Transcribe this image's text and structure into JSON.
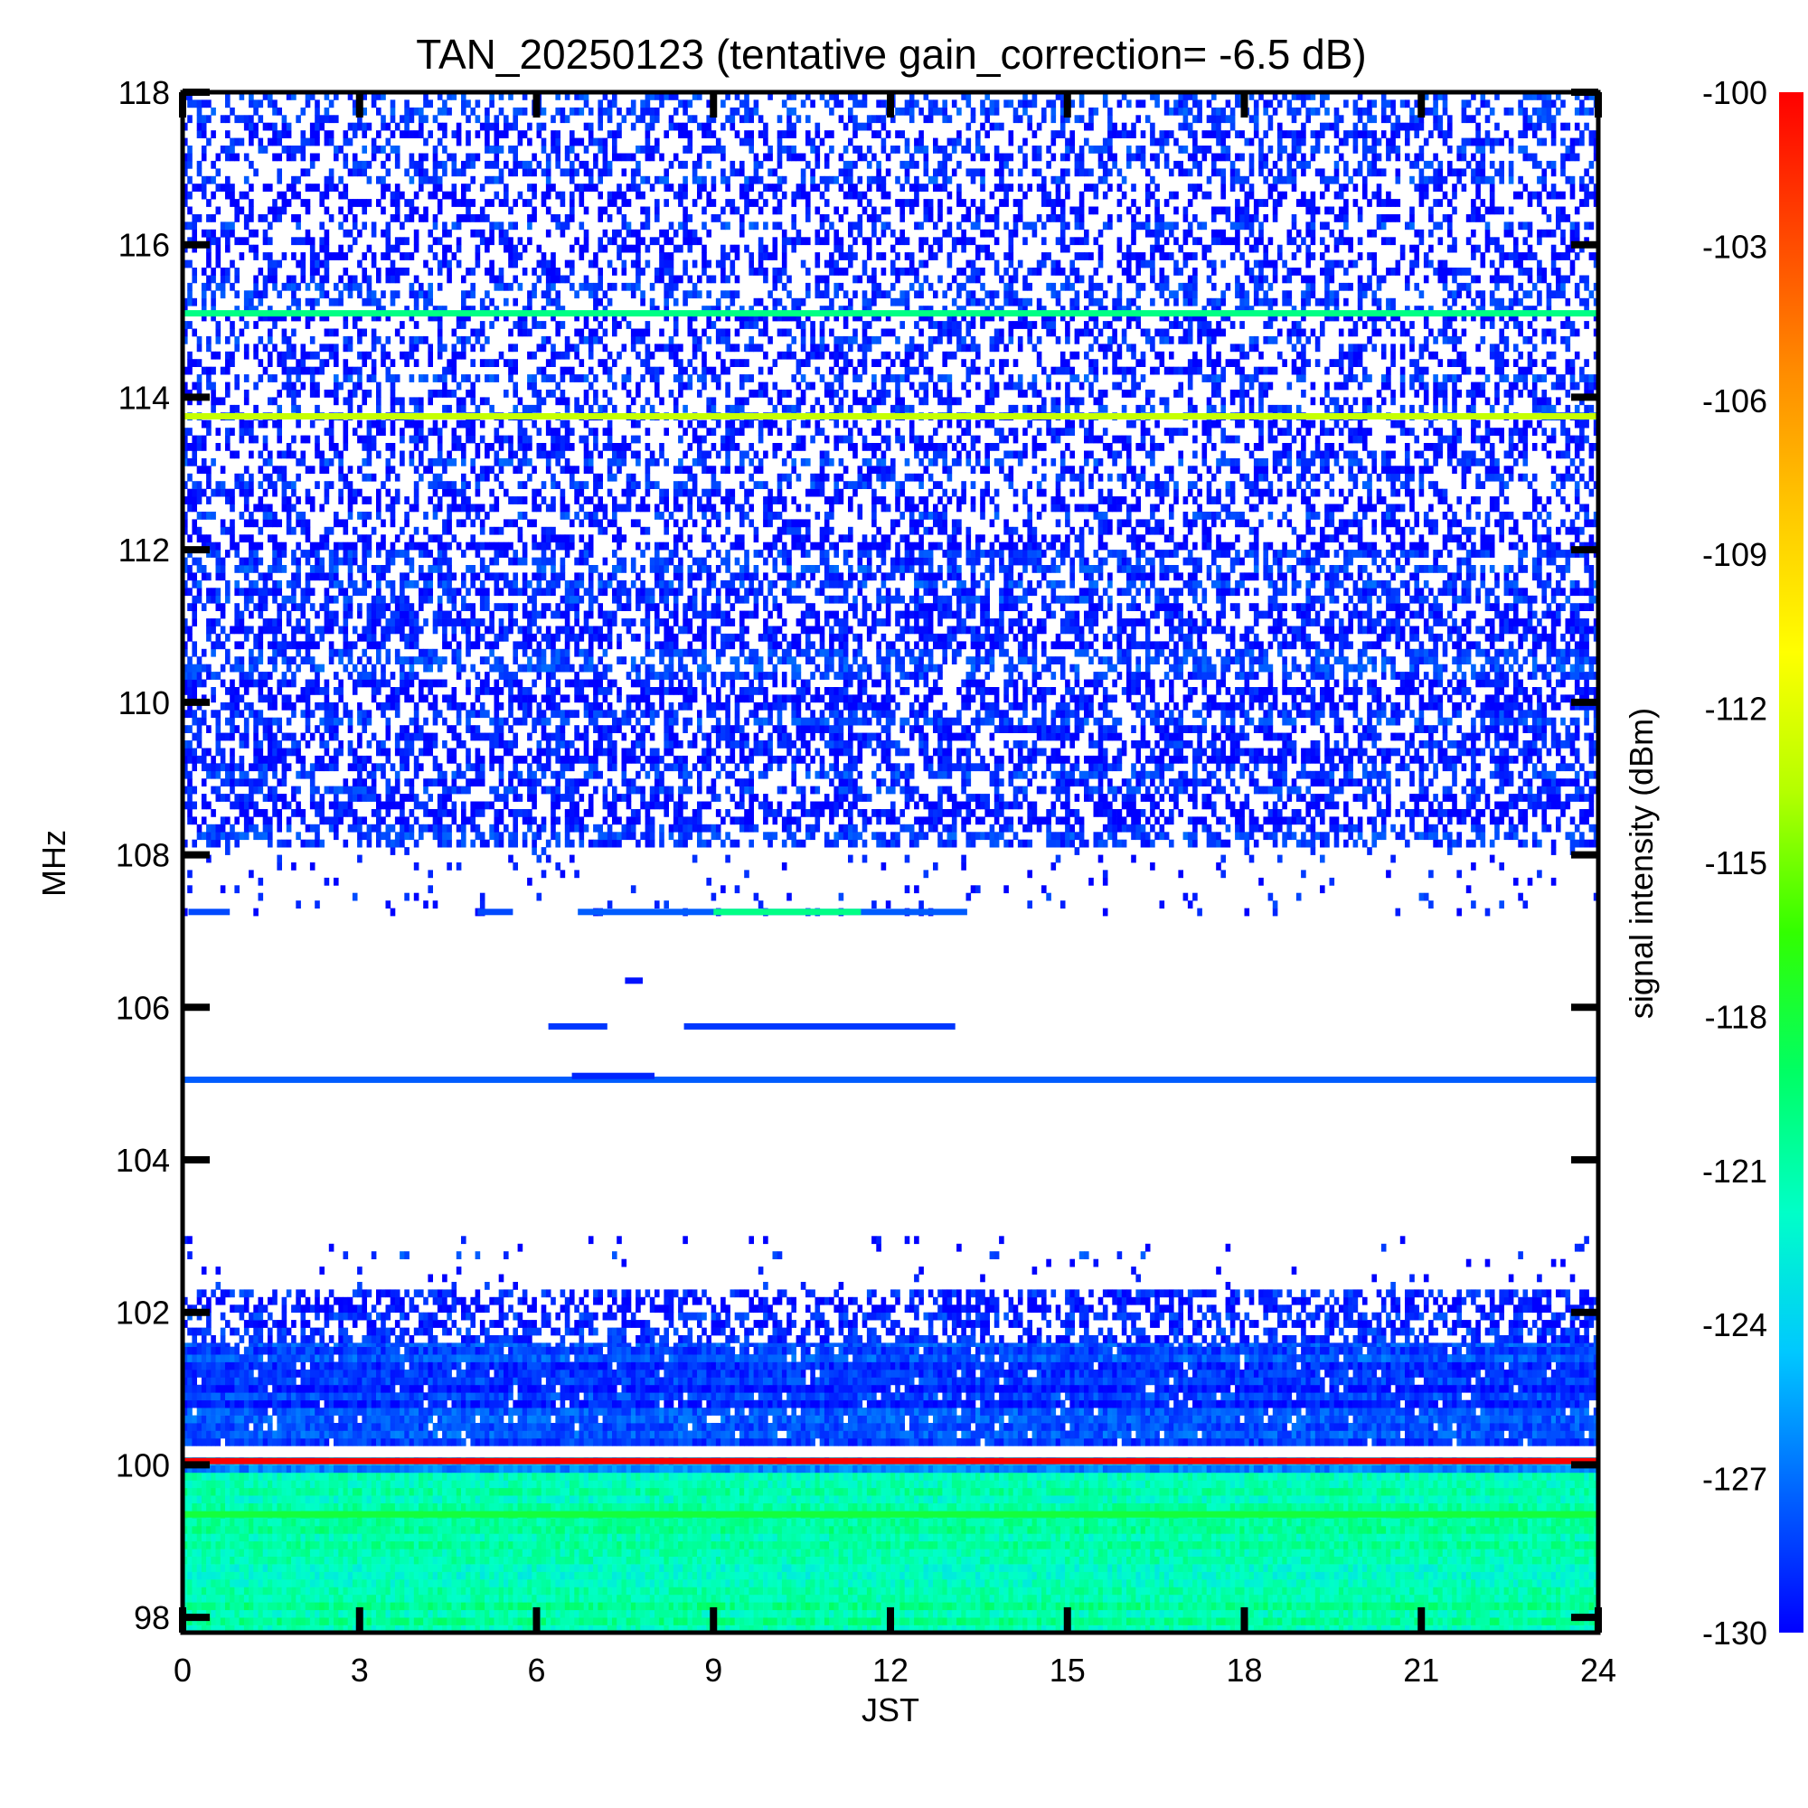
{
  "chart_data": {
    "type": "heatmap",
    "title": "TAN_20250123 (tentative gain_correction= -6.5 dB)",
    "xlabel": "JST",
    "ylabel": "MHz",
    "xlim": [
      0,
      24
    ],
    "ylim": [
      97.8,
      118
    ],
    "x_ticks": [
      "0",
      "3",
      "6",
      "9",
      "12",
      "15",
      "18",
      "21",
      "24"
    ],
    "y_ticks": [
      "98",
      "100",
      "102",
      "104",
      "106",
      "108",
      "110",
      "112",
      "114",
      "116",
      "118"
    ],
    "colorbar": {
      "label": "signal intensity (dBm)",
      "min": -130,
      "max": -100,
      "ticks": [
        "-100",
        "-103",
        "-106",
        "-109",
        "-112",
        "-115",
        "-118",
        "-121",
        "-124",
        "-127",
        "-130"
      ],
      "colormap": [
        "#0000ff",
        "#0064ff",
        "#00c8ff",
        "#00ffc8",
        "#00ff64",
        "#32ff00",
        "#b4ff00",
        "#ffff00",
        "#ffc800",
        "#ff8c00",
        "#ff4600",
        "#ff0000"
      ]
    },
    "regions": [
      {
        "f_min": 97.8,
        "f_max": 99.9,
        "level_dbm": -121.5,
        "density": 1.0
      },
      {
        "f_min": 99.9,
        "f_max": 100.1,
        "level_dbm": -126.0,
        "density": 1.0
      },
      {
        "f_min": 100.25,
        "f_max": 101.6,
        "level_dbm": -129.0,
        "density": 0.95
      },
      {
        "f_min": 101.6,
        "f_max": 102.3,
        "level_dbm": -129.5,
        "density": 0.55
      },
      {
        "f_min": 102.3,
        "f_max": 103.0,
        "level_dbm": -129.8,
        "density": 0.04
      },
      {
        "f_min": 107.2,
        "f_max": 108.1,
        "level_dbm": -129.8,
        "density": 0.06
      },
      {
        "f_min": 108.1,
        "f_max": 112.1,
        "level_dbm": -129.5,
        "density": 0.55
      },
      {
        "f_min": 112.1,
        "f_max": 118.0,
        "level_dbm": -129.6,
        "density": 0.42
      }
    ],
    "lines": [
      {
        "freq_mhz": 100.05,
        "level_dbm": -100.0,
        "t_start": 0,
        "t_end": 24
      },
      {
        "freq_mhz": 99.35,
        "level_dbm": -118.0,
        "t_start": 0,
        "t_end": 24
      },
      {
        "freq_mhz": 113.75,
        "level_dbm": -113.0,
        "t_start": 0,
        "t_end": 24
      },
      {
        "freq_mhz": 115.1,
        "level_dbm": -120.0,
        "t_start": 0,
        "t_end": 24
      },
      {
        "freq_mhz": 105.05,
        "level_dbm": -127.5,
        "t_start": 0,
        "t_end": 24
      },
      {
        "freq_mhz": 107.25,
        "level_dbm": -128.0,
        "t_start": 0.1,
        "t_end": 0.8
      },
      {
        "freq_mhz": 107.25,
        "level_dbm": -128.0,
        "t_start": 5.0,
        "t_end": 5.6
      },
      {
        "freq_mhz": 107.25,
        "level_dbm": -127.5,
        "t_start": 6.7,
        "t_end": 13.3
      },
      {
        "freq_mhz": 107.25,
        "level_dbm": -120.0,
        "t_start": 9.0,
        "t_end": 11.5
      },
      {
        "freq_mhz": 105.75,
        "level_dbm": -128.5,
        "t_start": 6.2,
        "t_end": 7.2
      },
      {
        "freq_mhz": 105.75,
        "level_dbm": -128.5,
        "t_start": 8.5,
        "t_end": 13.1
      },
      {
        "freq_mhz": 105.1,
        "level_dbm": -129.0,
        "t_start": 6.6,
        "t_end": 8.0
      },
      {
        "freq_mhz": 106.35,
        "level_dbm": -129.5,
        "t_start": 7.5,
        "t_end": 7.8
      }
    ]
  }
}
